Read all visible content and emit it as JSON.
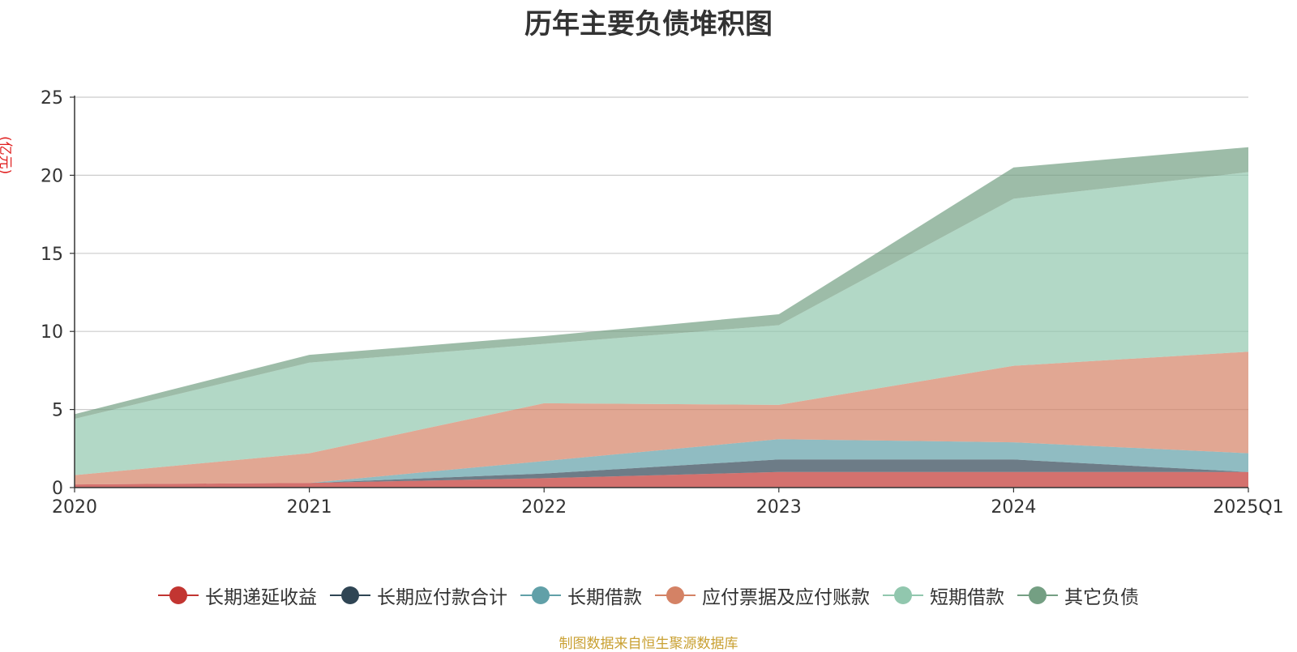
{
  "chart_data": {
    "type": "area",
    "stacked": true,
    "title": "历年主要负债堆积图",
    "unit_label": "(亿元)",
    "categories": [
      "2020",
      "2021",
      "2022",
      "2023",
      "2024",
      "2025Q1"
    ],
    "ylim": [
      0,
      25
    ],
    "yticks": [
      0,
      5,
      10,
      15,
      20,
      25
    ],
    "grid": true,
    "legend_position": "bottom",
    "series": [
      {
        "name": "长期递延收益",
        "color": "#c23531",
        "values": [
          0.2,
          0.3,
          0.6,
          1.0,
          1.0,
          1.0
        ]
      },
      {
        "name": "长期应付款合计",
        "color": "#2f4554",
        "values": [
          0.0,
          0.0,
          0.3,
          0.8,
          0.8,
          0.0
        ]
      },
      {
        "name": "长期借款",
        "color": "#61a0a8",
        "values": [
          0.0,
          0.0,
          0.8,
          1.3,
          1.1,
          1.2
        ]
      },
      {
        "name": "应付票据及应付账款",
        "color": "#d48265",
        "values": [
          0.6,
          1.9,
          3.7,
          2.2,
          4.9,
          6.5
        ]
      },
      {
        "name": "短期借款",
        "color": "#91c7ae",
        "values": [
          3.6,
          5.8,
          3.8,
          5.1,
          10.7,
          11.5
        ]
      },
      {
        "name": "其它负债",
        "color": "#749f83",
        "values": [
          0.3,
          0.5,
          0.5,
          0.7,
          2.0,
          1.6
        ]
      }
    ]
  },
  "source_note": "制图数据来自恒生聚源数据库"
}
